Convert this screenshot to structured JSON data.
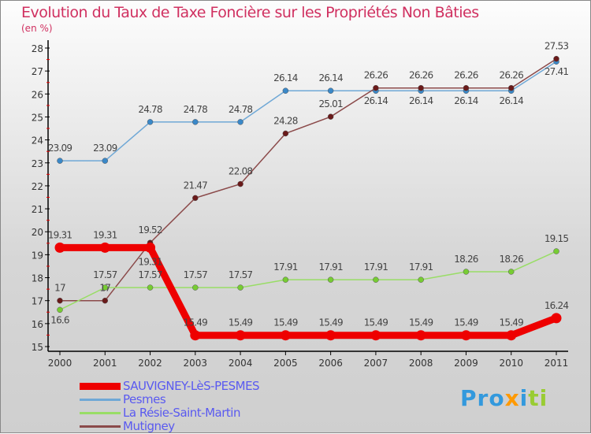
{
  "chart_data": {
    "type": "line",
    "title": "Evolution du Taux de Taxe Foncière sur les Propriétés Non Bâties",
    "ylabel": "(en %)",
    "xlabel": "",
    "ylim": [
      15,
      28
    ],
    "grid": false,
    "legend_position": "bottom-left",
    "x": [
      "2000",
      "2001",
      "2002",
      "2003",
      "2004",
      "2005",
      "2006",
      "2007",
      "2008",
      "2009",
      "2010",
      "2011"
    ],
    "yticks": [
      "15",
      "16",
      "17",
      "18",
      "19",
      "20",
      "21",
      "22",
      "23",
      "24",
      "25",
      "26",
      "27",
      "28"
    ],
    "series": [
      {
        "name": "SAUVIGNEY-LèS-PESMES",
        "color": "#ee0000",
        "values": [
          19.31,
          19.31,
          19.31,
          15.49,
          15.49,
          15.49,
          15.49,
          15.49,
          15.49,
          15.49,
          15.49,
          16.24
        ]
      },
      {
        "name": "Pesmes",
        "color": "#6fa8d6",
        "values": [
          23.09,
          23.09,
          24.78,
          24.78,
          24.78,
          26.14,
          26.14,
          26.14,
          26.14,
          26.14,
          26.14,
          27.41
        ]
      },
      {
        "name": "La Résie-Saint-Martin",
        "color": "#99dd66",
        "values": [
          16.6,
          17.57,
          17.57,
          17.57,
          17.57,
          17.91,
          17.91,
          17.91,
          17.91,
          18.26,
          18.26,
          19.15
        ]
      },
      {
        "name": "Mutigney",
        "color": "#8b4a4a",
        "values": [
          17,
          17,
          19.52,
          21.47,
          22.08,
          24.28,
          25.01,
          26.26,
          26.26,
          26.26,
          26.26,
          27.53
        ]
      }
    ]
  },
  "logo": "Proxiti"
}
